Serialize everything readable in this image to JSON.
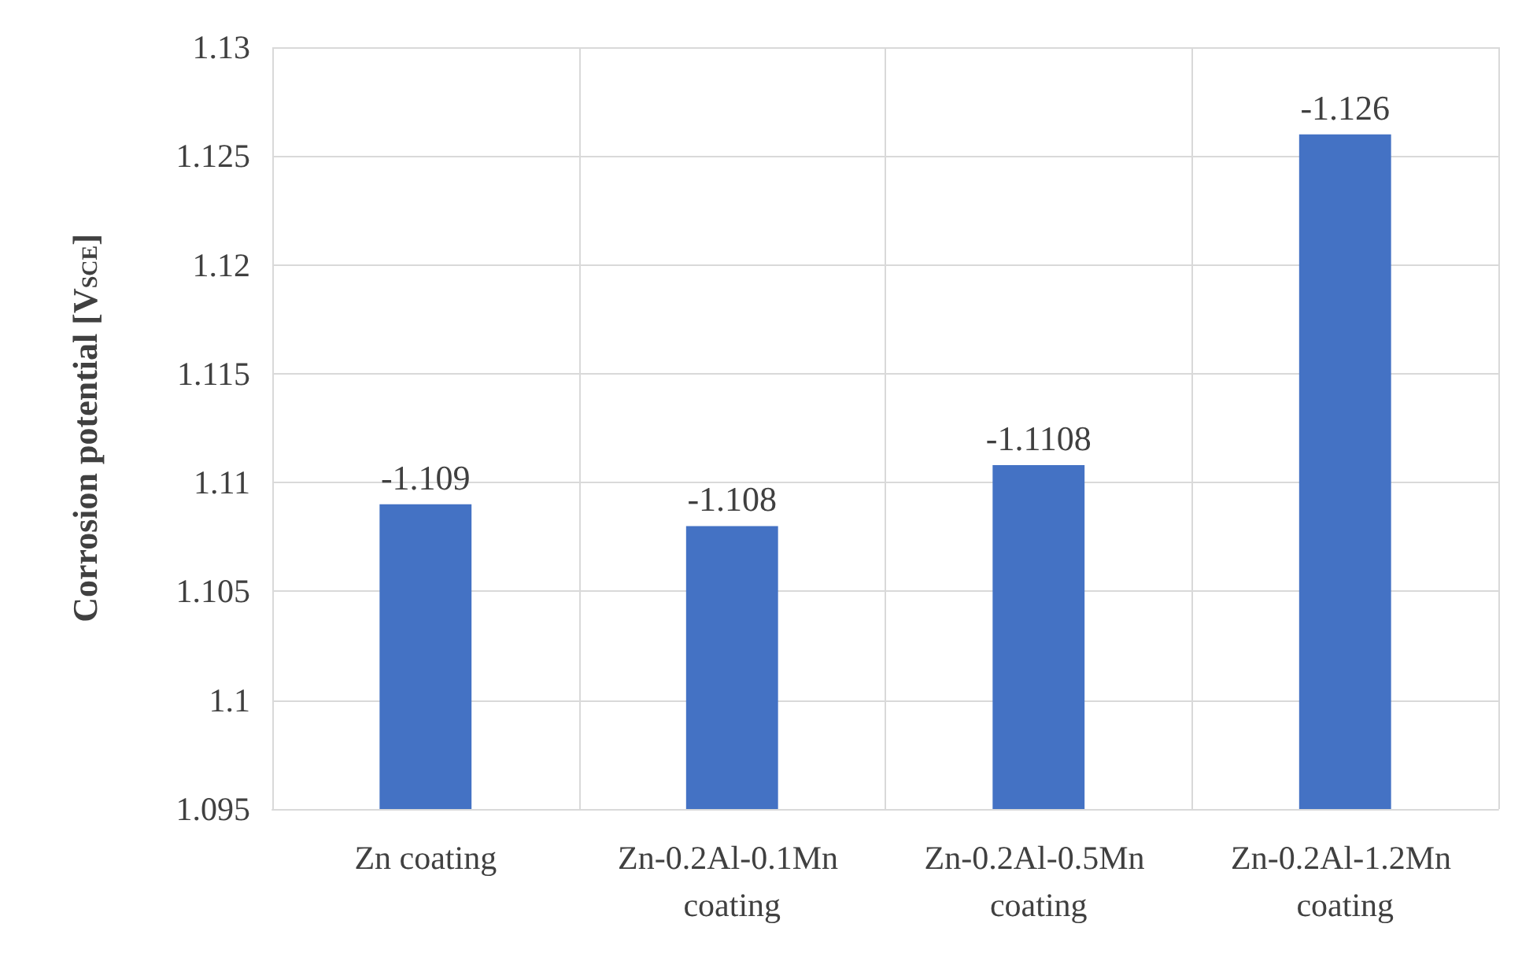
{
  "chart_data": {
    "type": "bar",
    "ylabel": "Corrosion potential [V$_{SCE}$]",
    "categories": [
      "Zn coating",
      "Zn-0.2Al-0.1Mn coating",
      "Zn-0.2Al-0.5Mn coating",
      "Zn-0.2Al-1.2Mn coating"
    ],
    "values": [
      1.109,
      1.108,
      1.1108,
      1.126
    ],
    "annotations": [
      {
        "text": "-1.109",
        "x": "Zn coating",
        "y": 1.109
      },
      {
        "text": "-1.108",
        "x": "Zn-0.2Al-0.1Mn coating",
        "y": 1.108
      },
      {
        "text": "-1.1108",
        "x": "Zn-0.2Al-0.5Mn coating",
        "y": 1.1108
      },
      {
        "text": "-1.126",
        "x": "Zn-0.2Al-1.2Mn coating",
        "y": 1.126
      }
    ],
    "color": "#4472c4",
    "ylim": [
      1.095,
      1.13
    ],
    "yticks": [
      1.095,
      1.1,
      1.105,
      1.11,
      1.115,
      1.12,
      1.125,
      1.13
    ],
    "grid": true
  }
}
